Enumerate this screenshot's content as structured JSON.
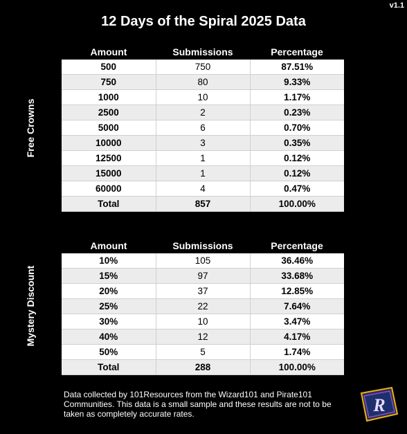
{
  "version": "v1.1",
  "title": "12 Days of the Spiral 2025 Data",
  "headers": {
    "amount": "Amount",
    "submissions": "Submissions",
    "percentage": "Percentage"
  },
  "free_crowns": {
    "label": "Free Crowns",
    "rows": [
      {
        "amount": "500",
        "submissions": "750",
        "percentage": "87.51%"
      },
      {
        "amount": "750",
        "submissions": "80",
        "percentage": "9.33%"
      },
      {
        "amount": "1000",
        "submissions": "10",
        "percentage": "1.17%"
      },
      {
        "amount": "2500",
        "submissions": "2",
        "percentage": "0.23%"
      },
      {
        "amount": "5000",
        "submissions": "6",
        "percentage": "0.70%"
      },
      {
        "amount": "10000",
        "submissions": "3",
        "percentage": "0.35%"
      },
      {
        "amount": "12500",
        "submissions": "1",
        "percentage": "0.12%"
      },
      {
        "amount": "15000",
        "submissions": "1",
        "percentage": "0.12%"
      },
      {
        "amount": "60000",
        "submissions": "4",
        "percentage": "0.47%"
      }
    ],
    "total": {
      "label": "Total",
      "submissions": "857",
      "percentage": "100.00%"
    }
  },
  "mystery_discount": {
    "label": "Mystery Discount",
    "rows": [
      {
        "amount": "10%",
        "submissions": "105",
        "percentage": "36.46%"
      },
      {
        "amount": "15%",
        "submissions": "97",
        "percentage": "33.68%"
      },
      {
        "amount": "20%",
        "submissions": "37",
        "percentage": "12.85%"
      },
      {
        "amount": "25%",
        "submissions": "22",
        "percentage": "7.64%"
      },
      {
        "amount": "30%",
        "submissions": "10",
        "percentage": "3.47%"
      },
      {
        "amount": "40%",
        "submissions": "12",
        "percentage": "4.17%"
      },
      {
        "amount": "50%",
        "submissions": "5",
        "percentage": "1.74%"
      }
    ],
    "total": {
      "label": "Total",
      "submissions": "288",
      "percentage": "100.00%"
    }
  },
  "footer": "Data collected by 101Resources from the Wizard101 and Pirate101 Communities. This data is a small sample and these results are not to be taken as completely accurate rates.",
  "logo": {
    "icon": "101resources-r-logo-icon",
    "letter": "R",
    "colors": [
      "#4a2a7a",
      "#1f2f6e",
      "#e6b800"
    ]
  }
}
